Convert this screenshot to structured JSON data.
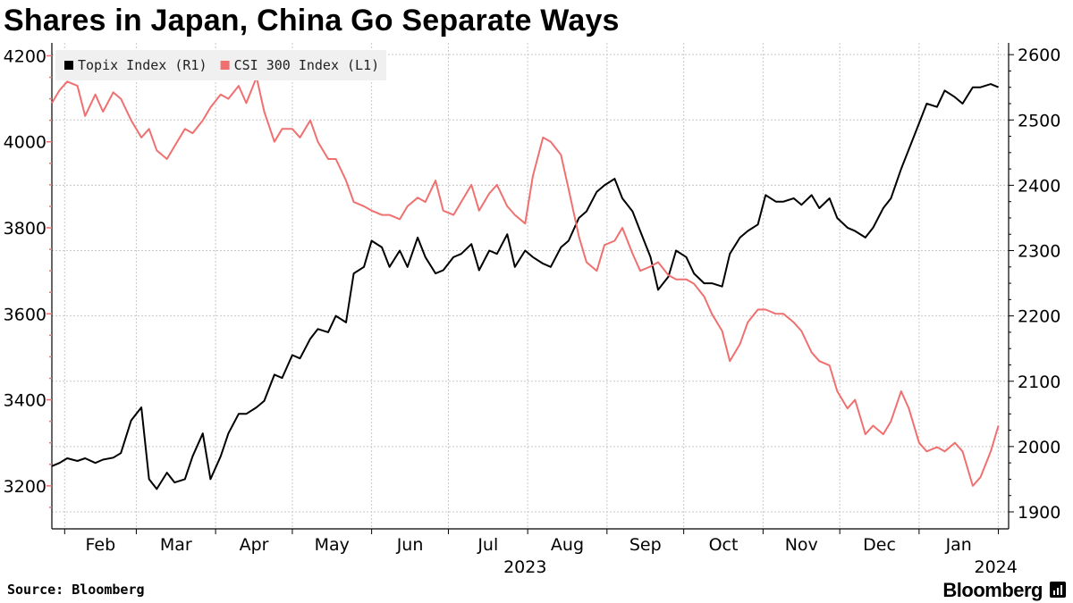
{
  "title": "Shares in Japan, China Go Separate Ways",
  "source": "Source: Bloomberg",
  "brand": "Bloomberg",
  "chart_data": {
    "type": "line",
    "x_ticks": [
      "Feb",
      "Mar",
      "Apr",
      "May",
      "Jun",
      "Jul",
      "Aug",
      "Sep",
      "Oct",
      "Nov",
      "Dec",
      "Jan"
    ],
    "year_labels": [
      {
        "label": "2023",
        "at": "2023-07-31"
      },
      {
        "label": "2024",
        "at": "2024-01-31"
      }
    ],
    "y_left": {
      "ticks": [
        3200,
        3400,
        3600,
        3800,
        4000,
        4200
      ],
      "range": [
        3100,
        4230
      ]
    },
    "y_right": {
      "ticks": [
        1900,
        2000,
        2100,
        2200,
        2300,
        2400,
        2500,
        2600
      ],
      "range": [
        1874,
        2618
      ]
    },
    "grid": true,
    "legend": "top-left",
    "series": [
      {
        "name": "Topix Index (R1)",
        "axis": "right",
        "color": "#000000",
        "x": [
          "2023-01-27",
          "2023-01-30",
          "2023-02-02",
          "2023-02-06",
          "2023-02-09",
          "2023-02-13",
          "2023-02-16",
          "2023-02-20",
          "2023-02-23",
          "2023-02-27",
          "2023-03-03",
          "2023-03-06",
          "2023-03-09",
          "2023-03-13",
          "2023-03-16",
          "2023-03-20",
          "2023-03-23",
          "2023-03-27",
          "2023-03-30",
          "2023-04-03",
          "2023-04-06",
          "2023-04-10",
          "2023-04-13",
          "2023-04-17",
          "2023-04-20",
          "2023-04-24",
          "2023-04-27",
          "2023-05-01",
          "2023-05-04",
          "2023-05-08",
          "2023-05-11",
          "2023-05-15",
          "2023-05-18",
          "2023-05-22",
          "2023-05-25",
          "2023-05-29",
          "2023-06-01",
          "2023-06-05",
          "2023-06-08",
          "2023-06-12",
          "2023-06-15",
          "2023-06-19",
          "2023-06-22",
          "2023-06-26",
          "2023-06-29",
          "2023-07-03",
          "2023-07-06",
          "2023-07-10",
          "2023-07-13",
          "2023-07-17",
          "2023-07-20",
          "2023-07-24",
          "2023-07-27",
          "2023-07-31",
          "2023-08-03",
          "2023-08-07",
          "2023-08-10",
          "2023-08-14",
          "2023-08-17",
          "2023-08-21",
          "2023-08-24",
          "2023-08-28",
          "2023-08-31",
          "2023-09-04",
          "2023-09-07",
          "2023-09-11",
          "2023-09-14",
          "2023-09-18",
          "2023-09-21",
          "2023-09-25",
          "2023-09-28",
          "2023-10-02",
          "2023-10-05",
          "2023-10-09",
          "2023-10-12",
          "2023-10-16",
          "2023-10-19",
          "2023-10-23",
          "2023-10-26",
          "2023-10-30",
          "2023-11-02",
          "2023-11-06",
          "2023-11-09",
          "2023-11-13",
          "2023-11-16",
          "2023-11-20",
          "2023-11-23",
          "2023-11-27",
          "2023-11-30",
          "2023-12-04",
          "2023-12-07",
          "2023-12-11",
          "2023-12-14",
          "2023-12-18",
          "2023-12-21",
          "2023-12-25",
          "2023-12-28",
          "2024-01-01",
          "2024-01-04",
          "2024-01-08",
          "2024-01-11",
          "2024-01-15",
          "2024-01-18",
          "2024-01-22",
          "2024-01-25",
          "2024-01-29",
          "2024-02-01"
        ],
        "values": [
          1970,
          1975,
          1982,
          1978,
          1982,
          1975,
          1980,
          1983,
          1990,
          2040,
          2060,
          1950,
          1935,
          1960,
          1945,
          1950,
          1985,
          2020,
          1950,
          1985,
          2020,
          2050,
          2050,
          2060,
          2070,
          2110,
          2105,
          2140,
          2135,
          2165,
          2180,
          2175,
          2200,
          2190,
          2265,
          2275,
          2315,
          2305,
          2275,
          2300,
          2275,
          2320,
          2290,
          2265,
          2270,
          2290,
          2295,
          2310,
          2270,
          2300,
          2295,
          2325,
          2275,
          2300,
          2290,
          2280,
          2275,
          2305,
          2315,
          2350,
          2360,
          2390,
          2400,
          2410,
          2380,
          2360,
          2330,
          2290,
          2240,
          2260,
          2300,
          2290,
          2265,
          2250,
          2250,
          2245,
          2295,
          2320,
          2330,
          2340,
          2385,
          2375,
          2375,
          2380,
          2370,
          2385,
          2365,
          2380,
          2350,
          2335,
          2330,
          2320,
          2335,
          2365,
          2380,
          2425,
          2455,
          2495,
          2525,
          2520,
          2545,
          2535,
          2525,
          2550,
          2550,
          2555,
          2550
        ]
      },
      {
        "name": "CSI 300 Index (L1)",
        "axis": "left",
        "color": "#f07070",
        "x": [
          "2023-01-27",
          "2023-01-30",
          "2023-02-02",
          "2023-02-06",
          "2023-02-09",
          "2023-02-13",
          "2023-02-16",
          "2023-02-20",
          "2023-02-23",
          "2023-02-27",
          "2023-03-03",
          "2023-03-06",
          "2023-03-09",
          "2023-03-13",
          "2023-03-16",
          "2023-03-20",
          "2023-03-23",
          "2023-03-27",
          "2023-03-30",
          "2023-04-03",
          "2023-04-06",
          "2023-04-10",
          "2023-04-13",
          "2023-04-17",
          "2023-04-20",
          "2023-04-24",
          "2023-04-27",
          "2023-05-01",
          "2023-05-04",
          "2023-05-08",
          "2023-05-11",
          "2023-05-15",
          "2023-05-18",
          "2023-05-22",
          "2023-05-25",
          "2023-05-29",
          "2023-06-01",
          "2023-06-05",
          "2023-06-08",
          "2023-06-12",
          "2023-06-15",
          "2023-06-19",
          "2023-06-22",
          "2023-06-26",
          "2023-06-29",
          "2023-07-03",
          "2023-07-06",
          "2023-07-10",
          "2023-07-13",
          "2023-07-17",
          "2023-07-20",
          "2023-07-24",
          "2023-07-27",
          "2023-07-31",
          "2023-08-03",
          "2023-08-07",
          "2023-08-10",
          "2023-08-14",
          "2023-08-17",
          "2023-08-21",
          "2023-08-24",
          "2023-08-28",
          "2023-08-31",
          "2023-09-04",
          "2023-09-07",
          "2023-09-11",
          "2023-09-14",
          "2023-09-18",
          "2023-09-21",
          "2023-09-25",
          "2023-09-28",
          "2023-10-02",
          "2023-10-05",
          "2023-10-09",
          "2023-10-12",
          "2023-10-16",
          "2023-10-19",
          "2023-10-23",
          "2023-10-26",
          "2023-10-30",
          "2023-11-02",
          "2023-11-06",
          "2023-11-09",
          "2023-11-13",
          "2023-11-16",
          "2023-11-20",
          "2023-11-23",
          "2023-11-27",
          "2023-11-30",
          "2023-12-04",
          "2023-12-07",
          "2023-12-11",
          "2023-12-14",
          "2023-12-18",
          "2023-12-21",
          "2023-12-25",
          "2023-12-28",
          "2024-01-01",
          "2024-01-04",
          "2024-01-08",
          "2024-01-11",
          "2024-01-15",
          "2024-01-18",
          "2024-01-22",
          "2024-01-25",
          "2024-01-29",
          "2024-02-01"
        ],
        "values": [
          4090,
          4120,
          4140,
          4130,
          4060,
          4110,
          4070,
          4115,
          4100,
          4050,
          4010,
          4030,
          3980,
          3960,
          3990,
          4030,
          4020,
          4050,
          4080,
          4110,
          4100,
          4130,
          4090,
          4150,
          4070,
          4000,
          4030,
          4030,
          4010,
          4050,
          4000,
          3960,
          3960,
          3910,
          3860,
          3850,
          3840,
          3830,
          3830,
          3820,
          3850,
          3870,
          3860,
          3910,
          3840,
          3830,
          3860,
          3900,
          3840,
          3880,
          3900,
          3850,
          3830,
          3810,
          3920,
          4010,
          4000,
          3970,
          3890,
          3780,
          3720,
          3700,
          3760,
          3770,
          3800,
          3740,
          3700,
          3710,
          3720,
          3690,
          3680,
          3680,
          3670,
          3640,
          3600,
          3560,
          3490,
          3530,
          3580,
          3610,
          3610,
          3600,
          3600,
          3580,
          3560,
          3510,
          3490,
          3480,
          3420,
          3380,
          3400,
          3320,
          3340,
          3320,
          3350,
          3420,
          3380,
          3300,
          3280,
          3290,
          3280,
          3300,
          3280,
          3200,
          3220,
          3280,
          3340
        ]
      }
    ]
  }
}
